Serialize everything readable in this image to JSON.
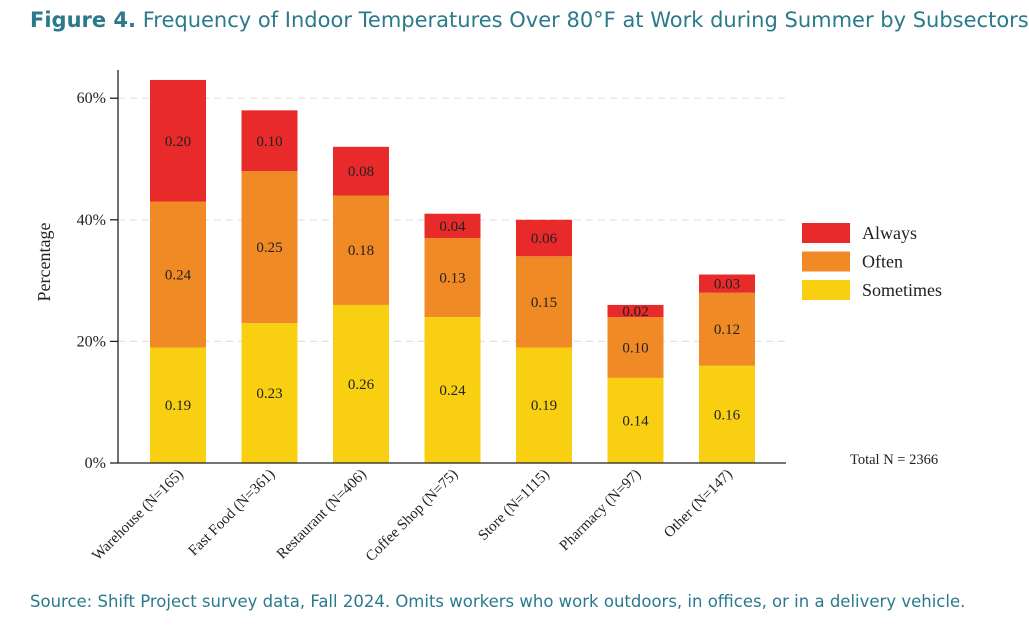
{
  "figure": {
    "label": "Figure 4.",
    "title": "Frequency of Indoor Temperatures Over 80°F at Work during Summer by Subsectors",
    "source": "Source: Shift Project survey data, Fall 2024. Omits workers who work outdoors, in offices, or in a delivery vehicle."
  },
  "chart_data": {
    "type": "bar",
    "stacked": true,
    "categories": [
      "Warehouse (N=165)",
      "Fast Food (N=361)",
      "Restaurant (N=406)",
      "Coffee Shop (N=75)",
      "Store (N=1115)",
      "Pharmacy (N=97)",
      "Other (N=147)"
    ],
    "series": [
      {
        "name": "Sometimes",
        "color": "#f9d011",
        "values": [
          0.19,
          0.23,
          0.26,
          0.24,
          0.19,
          0.14,
          0.16
        ],
        "labels": [
          "0.19",
          "0.23",
          "0.26",
          "0.24",
          "0.19",
          "0.14",
          "0.16"
        ]
      },
      {
        "name": "Often",
        "color": "#f08a24",
        "values": [
          0.24,
          0.25,
          0.18,
          0.13,
          0.15,
          0.1,
          0.12
        ],
        "labels": [
          "0.24",
          "0.25",
          "0.18",
          "0.13",
          "0.15",
          "0.10",
          "0.12"
        ]
      },
      {
        "name": "Always",
        "color": "#e82a2a",
        "values": [
          0.2,
          0.1,
          0.08,
          0.04,
          0.06,
          0.02,
          0.03
        ],
        "labels": [
          "0.20",
          "0.10",
          "0.08",
          "0.04",
          "0.06",
          "0.02",
          "0.03"
        ]
      }
    ],
    "ylabel": "Percentage",
    "xlabel": "",
    "ylim": [
      0,
      0.65
    ],
    "yticks": [
      0,
      0.2,
      0.4,
      0.6
    ],
    "ytick_labels": [
      "0%",
      "20%",
      "40%",
      "60%"
    ],
    "grid": "horizontal dashed",
    "legend": {
      "position": "right",
      "order": [
        "Always",
        "Often",
        "Sometimes"
      ]
    },
    "annotation": "Total N = 2366"
  }
}
